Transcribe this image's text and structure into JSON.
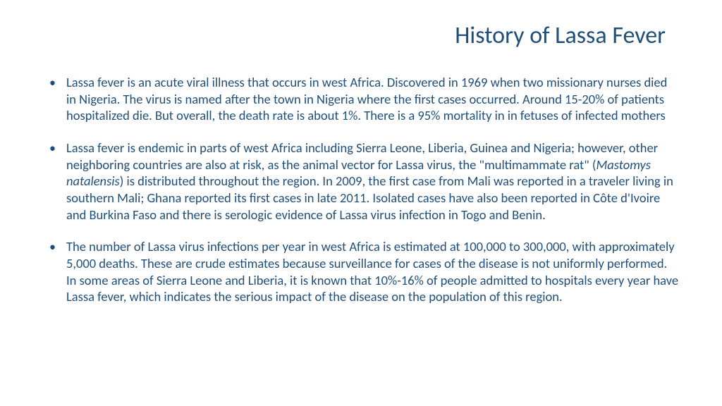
{
  "slide": {
    "title": "History of Lassa Fever",
    "text_color": "#1f4e79",
    "background_color": "#ffffff",
    "title_fontsize": 34,
    "body_fontsize": 18.5,
    "bullets": [
      {
        "text": "Lassa fever is an acute viral illness that occurs in west Africa. Discovered in 1969 when two missionary nurses died in Nigeria. The virus is named after the town in Nigeria where the first cases occurred. Around 15-20% of patients hospitalized die. But overall, the death rate is about 1%.  There is a 95% mortality in in fetuses of infected mothers"
      },
      {
        "pre": "Lassa fever is endemic in parts of west Africa including Sierra Leone, Liberia, Guinea and Nigeria; however, other neighboring countries are also at risk, as the animal vector for Lassa virus, the \"multimammate rat\" (",
        "italic": "Mastomys natalensis",
        "post": ") is distributed throughout the region. In 2009, the first case from Mali was reported in a traveler living in southern Mali; Ghana reported its first cases in late 2011. Isolated cases have also been reported in Côte d'Ivoire and Burkina Faso and there is serologic evidence of Lassa virus infection in Togo and Benin."
      },
      {
        "text": "The number of Lassa virus infections per year in west Africa is estimated at 100,000 to 300,000, with approximately 5,000 deaths. These are crude estimates because surveillance for cases of the disease is not uniformly performed. In some areas of Sierra Leone and Liberia, it is known that 10%-16% of people admitted to hospitals every year have Lassa fever, which indicates the serious impact of the disease on the population of this region."
      }
    ],
    "bullet_marker": "•"
  }
}
